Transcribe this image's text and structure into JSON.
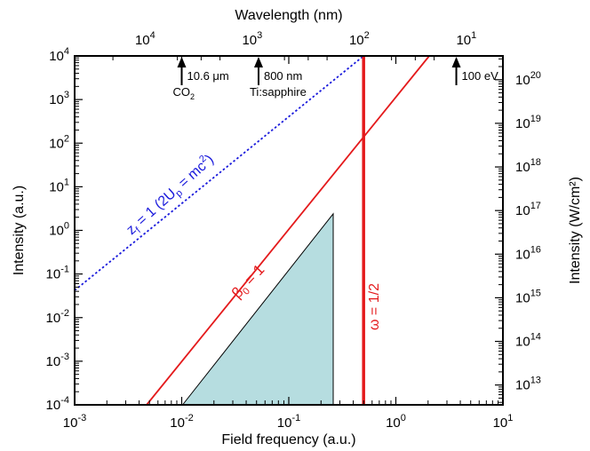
{
  "chart_data": {
    "type": "line",
    "title": "",
    "xlabel": "Field frequency (a.u.)",
    "ylabel": "Intensity (a.u.)",
    "x2label": "Wavelength (nm)",
    "y2label": "Intensity (W/cm²)",
    "x_scale": "log",
    "y_scale": "log",
    "xlim": [
      0.001,
      10
    ],
    "ylim": [
      0.0001,
      10000
    ],
    "grid": false,
    "x_ticks": [
      {
        "value": 0.001,
        "mantissa": "10",
        "exp": "-3"
      },
      {
        "value": 0.01,
        "mantissa": "10",
        "exp": "-2"
      },
      {
        "value": 0.1,
        "mantissa": "10",
        "exp": "-1"
      },
      {
        "value": 1,
        "mantissa": "10",
        "exp": "0"
      },
      {
        "value": 10,
        "mantissa": "10",
        "exp": "1"
      }
    ],
    "y_ticks": [
      {
        "value": 0.0001,
        "mantissa": "10",
        "exp": "-4"
      },
      {
        "value": 0.001,
        "mantissa": "10",
        "exp": "-3"
      },
      {
        "value": 0.01,
        "mantissa": "10",
        "exp": "-2"
      },
      {
        "value": 0.1,
        "mantissa": "10",
        "exp": "-1"
      },
      {
        "value": 1,
        "mantissa": "10",
        "exp": "0"
      },
      {
        "value": 10,
        "mantissa": "10",
        "exp": "1"
      },
      {
        "value": 100,
        "mantissa": "10",
        "exp": "2"
      },
      {
        "value": 1000,
        "mantissa": "10",
        "exp": "3"
      },
      {
        "value": 10000,
        "mantissa": "10",
        "exp": "4"
      }
    ],
    "x2_ticks": [
      {
        "wavelength_nm": 10000,
        "mantissa": "10",
        "exp": "4"
      },
      {
        "wavelength_nm": 1000,
        "mantissa": "10",
        "exp": "3"
      },
      {
        "wavelength_nm": 100,
        "mantissa": "10",
        "exp": "2"
      },
      {
        "wavelength_nm": 10,
        "mantissa": "10",
        "exp": "1"
      }
    ],
    "y2_ticks": [
      {
        "intensity_wcm2": 10000000000000.0,
        "mantissa": "10",
        "exp": "13"
      },
      {
        "intensity_wcm2": 100000000000000.0,
        "mantissa": "10",
        "exp": "14"
      },
      {
        "intensity_wcm2": 1000000000000000.0,
        "mantissa": "10",
        "exp": "15"
      },
      {
        "intensity_wcm2": 1e+16,
        "mantissa": "10",
        "exp": "16"
      },
      {
        "intensity_wcm2": 1e+17,
        "mantissa": "10",
        "exp": "17"
      },
      {
        "intensity_wcm2": 1e+18,
        "mantissa": "10",
        "exp": "18"
      },
      {
        "intensity_wcm2": 1e+19,
        "mantissa": "10",
        "exp": "19"
      },
      {
        "intensity_wcm2": 1e+20,
        "mantissa": "10",
        "exp": "20"
      }
    ],
    "series": [
      {
        "name": "z_f = 1 (2U_p = mc²)",
        "color": "#1a1adc",
        "style": "dotted",
        "points": [
          [
            0.001,
            0.042
          ],
          [
            0.5,
            10000
          ]
        ]
      },
      {
        "name": "β_0 = 1",
        "color": "#e41a1c",
        "style": "solid",
        "points": [
          [
            0.0047,
            0.0001
          ],
          [
            2.05,
            10000
          ]
        ]
      },
      {
        "name": "ω = 1/2",
        "color": "#e41a1c",
        "style": "solid-thick",
        "points": [
          [
            0.5,
            0.0001
          ],
          [
            0.5,
            10000
          ]
        ]
      }
    ],
    "regions": [
      {
        "fill": "#b6dde0",
        "points": [
          [
            0.0102,
            0.0001
          ],
          [
            0.26,
            2.4
          ],
          [
            0.26,
            0.0001
          ]
        ]
      }
    ],
    "series_labels": [
      {
        "text": "z",
        "sub": "f",
        "rest": " = 1 (2U",
        "sub2": "p",
        "rest2": " = mc",
        "sup": "2",
        "end": ")",
        "color": "#1a1adc"
      },
      {
        "text": "β",
        "sub": "0",
        "rest": " = 1",
        "color": "#e41a1c"
      },
      {
        "text": "ω = 1/2",
        "color": "#e41a1c"
      }
    ],
    "markers": [
      {
        "x": 0.01,
        "line1": "10.6 μm",
        "line2": "CO",
        "line2_sub": "2"
      },
      {
        "x": 0.0522,
        "line1": "800 nm",
        "line2": "Ti:sapphire",
        "line2_sub": ""
      },
      {
        "x": 3.67,
        "line1": "100 eV",
        "line2": "",
        "line2_sub": ""
      }
    ]
  }
}
